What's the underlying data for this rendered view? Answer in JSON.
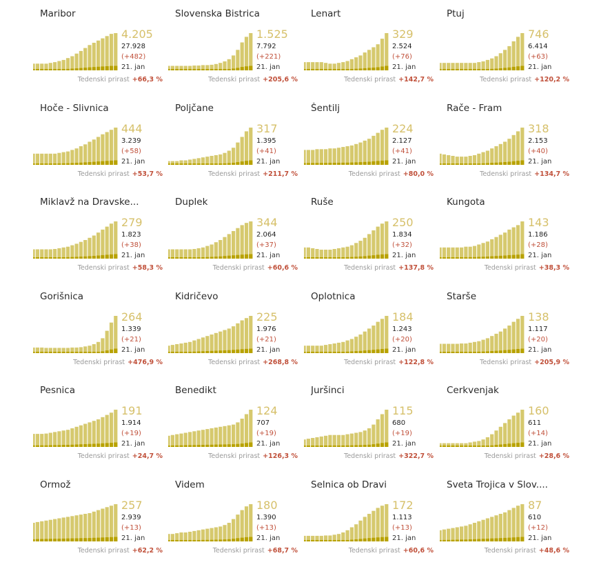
{
  "labels": {
    "growth_label": "Tedenski prirast",
    "date": "21. jan"
  },
  "colors": {
    "bar": "#d6c96e",
    "bar_recent": "#b8a200",
    "delta": "#c0503a",
    "value": "#d6c06a"
  },
  "chart_data": [
    {
      "type": "bar",
      "name": "Maribor",
      "value": "4.205",
      "total": "27.928",
      "delta": "(+482)",
      "growth": "+66,3 %",
      "shape": [
        0.18,
        0.18,
        0.18,
        0.18,
        0.2,
        0.22,
        0.25,
        0.28,
        0.33,
        0.38,
        0.45,
        0.52,
        0.6,
        0.68,
        0.74,
        0.8,
        0.86,
        0.92,
        0.98,
        1.0
      ]
    },
    {
      "type": "bar",
      "name": "Slovenska Bistrica",
      "value": "1.525",
      "total": "7.792",
      "delta": "(+221)",
      "growth": "+205,6 %",
      "shape": [
        0.12,
        0.12,
        0.12,
        0.12,
        0.12,
        0.12,
        0.13,
        0.13,
        0.14,
        0.14,
        0.15,
        0.17,
        0.2,
        0.24,
        0.3,
        0.4,
        0.55,
        0.75,
        0.9,
        1.0
      ]
    },
    {
      "type": "bar",
      "name": "Lenart",
      "value": "329",
      "total": "2.524",
      "delta": "(+76)",
      "growth": "+142,7 %",
      "shape": [
        0.22,
        0.22,
        0.22,
        0.22,
        0.22,
        0.2,
        0.18,
        0.18,
        0.2,
        0.22,
        0.25,
        0.3,
        0.35,
        0.4,
        0.48,
        0.55,
        0.62,
        0.7,
        0.85,
        1.0
      ]
    },
    {
      "type": "bar",
      "name": "Ptuj",
      "value": "746",
      "total": "6.414",
      "delta": "(+63)",
      "growth": "+120,2 %",
      "shape": [
        0.2,
        0.2,
        0.2,
        0.2,
        0.2,
        0.2,
        0.2,
        0.2,
        0.2,
        0.22,
        0.24,
        0.28,
        0.32,
        0.38,
        0.46,
        0.55,
        0.65,
        0.78,
        0.9,
        1.0
      ]
    },
    {
      "type": "bar",
      "name": "Hoče - Slivnica",
      "value": "444",
      "total": "3.239",
      "delta": "(+58)",
      "growth": "+53,7 %",
      "shape": [
        0.3,
        0.3,
        0.3,
        0.3,
        0.3,
        0.3,
        0.32,
        0.34,
        0.36,
        0.4,
        0.44,
        0.5,
        0.55,
        0.62,
        0.68,
        0.75,
        0.82,
        0.88,
        0.94,
        1.0
      ]
    },
    {
      "type": "bar",
      "name": "Poljčane",
      "value": "317",
      "total": "1.395",
      "delta": "(+41)",
      "growth": "+211,7 %",
      "shape": [
        0.1,
        0.1,
        0.1,
        0.12,
        0.12,
        0.14,
        0.16,
        0.18,
        0.2,
        0.22,
        0.24,
        0.26,
        0.28,
        0.32,
        0.38,
        0.46,
        0.6,
        0.75,
        0.9,
        1.0
      ]
    },
    {
      "type": "bar",
      "name": "Šentilj",
      "value": "224",
      "total": "2.127",
      "delta": "(+41)",
      "growth": "+80,0 %",
      "shape": [
        0.4,
        0.4,
        0.4,
        0.42,
        0.42,
        0.42,
        0.44,
        0.44,
        0.46,
        0.48,
        0.5,
        0.52,
        0.56,
        0.6,
        0.65,
        0.7,
        0.78,
        0.86,
        0.94,
        1.0
      ]
    },
    {
      "type": "bar",
      "name": "Rače - Fram",
      "value": "318",
      "total": "2.153",
      "delta": "(+40)",
      "growth": "+134,7 %",
      "shape": [
        0.3,
        0.28,
        0.26,
        0.24,
        0.22,
        0.22,
        0.22,
        0.24,
        0.26,
        0.3,
        0.34,
        0.38,
        0.44,
        0.5,
        0.56,
        0.62,
        0.7,
        0.8,
        0.9,
        1.0
      ]
    },
    {
      "type": "bar",
      "name": "Miklavž na Dravske...",
      "value": "279",
      "total": "1.823",
      "delta": "(+38)",
      "growth": "+58,3 %",
      "shape": [
        0.25,
        0.25,
        0.25,
        0.25,
        0.25,
        0.26,
        0.28,
        0.3,
        0.32,
        0.36,
        0.4,
        0.45,
        0.5,
        0.56,
        0.62,
        0.7,
        0.78,
        0.86,
        0.94,
        1.0
      ]
    },
    {
      "type": "bar",
      "name": "Duplek",
      "value": "344",
      "total": "2.064",
      "delta": "(+37)",
      "growth": "+60,6 %",
      "shape": [
        0.25,
        0.25,
        0.25,
        0.25,
        0.25,
        0.25,
        0.26,
        0.28,
        0.3,
        0.34,
        0.38,
        0.44,
        0.5,
        0.58,
        0.66,
        0.74,
        0.82,
        0.9,
        0.96,
        1.0
      ]
    },
    {
      "type": "bar",
      "name": "Ruše",
      "value": "250",
      "total": "1.834",
      "delta": "(+32)",
      "growth": "+137,8 %",
      "shape": [
        0.3,
        0.3,
        0.28,
        0.26,
        0.24,
        0.24,
        0.24,
        0.26,
        0.28,
        0.3,
        0.32,
        0.36,
        0.42,
        0.48,
        0.56,
        0.66,
        0.76,
        0.86,
        0.94,
        1.0
      ]
    },
    {
      "type": "bar",
      "name": "Kungota",
      "value": "143",
      "total": "1.186",
      "delta": "(+28)",
      "growth": "+38,3 %",
      "shape": [
        0.3,
        0.3,
        0.3,
        0.3,
        0.3,
        0.3,
        0.32,
        0.32,
        0.34,
        0.38,
        0.42,
        0.46,
        0.52,
        0.58,
        0.64,
        0.7,
        0.78,
        0.84,
        0.9,
        1.0
      ]
    },
    {
      "type": "bar",
      "name": "Gorišnica",
      "value": "264",
      "total": "1.339",
      "delta": "(+21)",
      "growth": "+476,9 %",
      "shape": [
        0.15,
        0.15,
        0.15,
        0.14,
        0.14,
        0.14,
        0.14,
        0.14,
        0.14,
        0.15,
        0.15,
        0.16,
        0.18,
        0.2,
        0.24,
        0.3,
        0.4,
        0.6,
        0.82,
        1.0
      ]
    },
    {
      "type": "bar",
      "name": "Kidričevo",
      "value": "225",
      "total": "1.976",
      "delta": "(+21)",
      "growth": "+268,8 %",
      "shape": [
        0.2,
        0.22,
        0.24,
        0.26,
        0.28,
        0.3,
        0.34,
        0.38,
        0.42,
        0.46,
        0.5,
        0.54,
        0.58,
        0.62,
        0.66,
        0.72,
        0.8,
        0.88,
        0.94,
        1.0
      ]
    },
    {
      "type": "bar",
      "name": "Oplotnica",
      "value": "184",
      "total": "1.243",
      "delta": "(+20)",
      "growth": "+122,8 %",
      "shape": [
        0.2,
        0.2,
        0.2,
        0.2,
        0.2,
        0.22,
        0.24,
        0.26,
        0.28,
        0.3,
        0.34,
        0.38,
        0.44,
        0.5,
        0.58,
        0.66,
        0.74,
        0.84,
        0.92,
        1.0
      ]
    },
    {
      "type": "bar",
      "name": "Starše",
      "value": "138",
      "total": "1.117",
      "delta": "(+20)",
      "growth": "+205,9 %",
      "shape": [
        0.25,
        0.25,
        0.25,
        0.25,
        0.25,
        0.26,
        0.26,
        0.28,
        0.3,
        0.32,
        0.36,
        0.4,
        0.46,
        0.52,
        0.58,
        0.66,
        0.74,
        0.84,
        0.92,
        1.0
      ]
    },
    {
      "type": "bar",
      "name": "Pesnica",
      "value": "191",
      "total": "1.914",
      "delta": "(+19)",
      "growth": "+24,7 %",
      "shape": [
        0.35,
        0.35,
        0.35,
        0.36,
        0.38,
        0.4,
        0.42,
        0.44,
        0.46,
        0.5,
        0.54,
        0.58,
        0.62,
        0.66,
        0.7,
        0.74,
        0.8,
        0.86,
        0.92,
        1.0
      ]
    },
    {
      "type": "bar",
      "name": "Benedikt",
      "value": "124",
      "total": "707",
      "delta": "(+19)",
      "growth": "+126,3 %",
      "shape": [
        0.3,
        0.32,
        0.34,
        0.36,
        0.38,
        0.4,
        0.42,
        0.44,
        0.46,
        0.48,
        0.5,
        0.52,
        0.54,
        0.56,
        0.58,
        0.6,
        0.66,
        0.76,
        0.88,
        1.0
      ]
    },
    {
      "type": "bar",
      "name": "Juršinci",
      "value": "115",
      "total": "680",
      "delta": "(+19)",
      "growth": "+322,7 %",
      "shape": [
        0.2,
        0.22,
        0.24,
        0.26,
        0.28,
        0.3,
        0.32,
        0.32,
        0.32,
        0.32,
        0.34,
        0.36,
        0.38,
        0.4,
        0.44,
        0.5,
        0.6,
        0.74,
        0.88,
        1.0
      ]
    },
    {
      "type": "bar",
      "name": "Cerkvenjak",
      "value": "160",
      "total": "611",
      "delta": "(+14)",
      "growth": "+28,6 %",
      "shape": [
        0.1,
        0.1,
        0.1,
        0.1,
        0.1,
        0.1,
        0.1,
        0.12,
        0.14,
        0.16,
        0.2,
        0.26,
        0.34,
        0.44,
        0.54,
        0.64,
        0.74,
        0.84,
        0.92,
        1.0
      ]
    },
    {
      "type": "bar",
      "name": "Ormož",
      "value": "257",
      "total": "2.939",
      "delta": "(+13)",
      "growth": "+62,2 %",
      "shape": [
        0.5,
        0.52,
        0.54,
        0.56,
        0.58,
        0.6,
        0.62,
        0.64,
        0.66,
        0.68,
        0.7,
        0.72,
        0.74,
        0.76,
        0.8,
        0.84,
        0.88,
        0.92,
        0.96,
        1.0
      ]
    },
    {
      "type": "bar",
      "name": "Videm",
      "value": "180",
      "total": "1.390",
      "delta": "(+13)",
      "growth": "+68,7 %",
      "shape": [
        0.2,
        0.2,
        0.22,
        0.24,
        0.24,
        0.26,
        0.28,
        0.3,
        0.32,
        0.34,
        0.36,
        0.38,
        0.4,
        0.44,
        0.5,
        0.6,
        0.72,
        0.84,
        0.94,
        1.0
      ]
    },
    {
      "type": "bar",
      "name": "Selnica ob Dravi",
      "value": "172",
      "total": "1.113",
      "delta": "(+13)",
      "growth": "+60,6 %",
      "shape": [
        0.15,
        0.15,
        0.15,
        0.15,
        0.15,
        0.16,
        0.16,
        0.18,
        0.2,
        0.24,
        0.3,
        0.38,
        0.46,
        0.56,
        0.66,
        0.74,
        0.82,
        0.9,
        0.96,
        1.0
      ]
    },
    {
      "type": "bar",
      "name": "Sveta Trojica v Slov....",
      "value": "87",
      "total": "610",
      "delta": "(+12)",
      "growth": "+48,6 %",
      "shape": [
        0.3,
        0.32,
        0.34,
        0.36,
        0.38,
        0.4,
        0.42,
        0.46,
        0.5,
        0.54,
        0.58,
        0.62,
        0.66,
        0.7,
        0.74,
        0.78,
        0.84,
        0.9,
        0.96,
        1.0
      ]
    }
  ]
}
